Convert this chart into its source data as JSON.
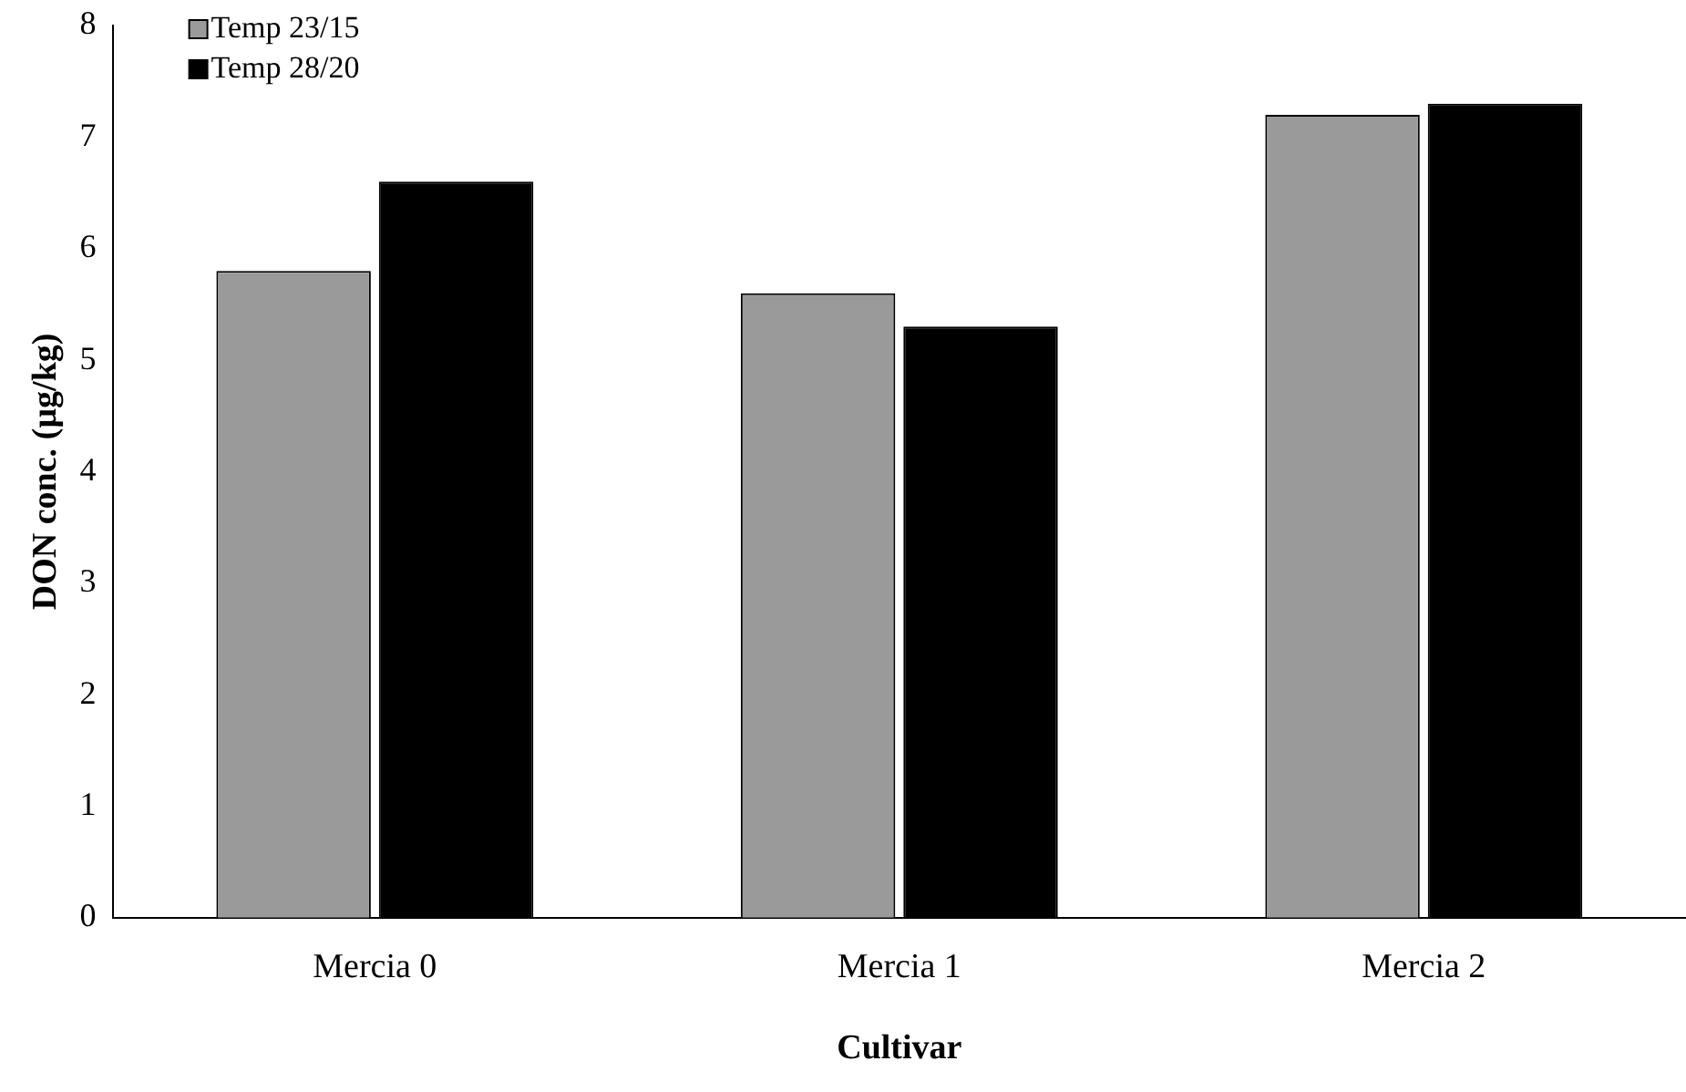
{
  "chart_data": {
    "type": "bar",
    "xlabel": "Cultivar",
    "ylabel": "DON conc. (µg/kg)",
    "categories": [
      "Mercia 0",
      "Mercia 1",
      "Mercia 2"
    ],
    "series": [
      {
        "name": "Temp 23/15",
        "color": "#9a9a9a",
        "values": [
          5.8,
          5.6,
          7.2
        ]
      },
      {
        "name": "Temp 28/20",
        "color": "#000000",
        "values": [
          6.6,
          5.3,
          7.3
        ]
      }
    ],
    "ylim": [
      0,
      8
    ],
    "yticks": [
      0,
      1,
      2,
      3,
      4,
      5,
      6,
      7,
      8
    ],
    "grid": false,
    "legend": "top left"
  }
}
